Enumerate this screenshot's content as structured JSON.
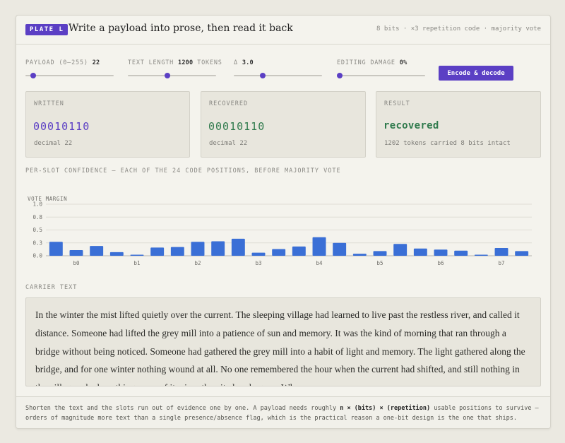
{
  "header": {
    "plate": "PLATE L",
    "title": "Write a payload into prose, then read it back",
    "meta": "8 bits · ×3 repetition code · majority vote"
  },
  "controls": [
    {
      "label": "PAYLOAD (0–255)",
      "value": "22",
      "fraction": 0.086
    },
    {
      "label": "TEXT LENGTH",
      "value": "1200",
      "unit": "TOKENS",
      "fraction": 0.45
    },
    {
      "label": "Δ",
      "value": "3.0",
      "fraction": 0.33
    },
    {
      "label": "EDITING DAMAGE",
      "value": "0%",
      "fraction": 0.0
    }
  ],
  "encode_button": "Encode & decode",
  "panels": {
    "written": {
      "label": "WRITTEN",
      "bits": "00010110",
      "sub": "decimal 22"
    },
    "recovered": {
      "label": "RECOVERED",
      "bits": "00010110",
      "sub": "decimal 22"
    },
    "result": {
      "label": "RESULT",
      "status": "recovered",
      "sub": "1202 tokens carried 8 bits intact"
    }
  },
  "colors": {
    "accent": "#5b3fc4",
    "written_bits": "#5b3fc4",
    "recovered_bits": "#2f7a4c",
    "bar": "#3a6fd6"
  },
  "chart_section_label": "PER-SLOT CONFIDENCE — EACH OF THE 24 CODE POSITIONS, BEFORE MAJORITY VOTE",
  "chart_data": {
    "type": "bar",
    "ylabel": "VOTE MARGIN",
    "ylim": [
      0,
      1.0
    ],
    "yticks": [
      "0.0",
      "0.3",
      "0.5",
      "0.8",
      "1.0"
    ],
    "ytick_values": [
      0,
      0.25,
      0.5,
      0.75,
      1.0
    ],
    "xlabels": [
      "b0",
      "b1",
      "b2",
      "b3",
      "b4",
      "b5",
      "b6",
      "b7"
    ],
    "values": [
      0.27,
      0.11,
      0.19,
      0.07,
      0.02,
      0.16,
      0.17,
      0.27,
      0.28,
      0.33,
      0.06,
      0.13,
      0.18,
      0.36,
      0.25,
      0.04,
      0.09,
      0.23,
      0.14,
      0.12,
      0.1,
      0.02,
      0.15,
      0.09
    ],
    "grid": true
  },
  "carrier": {
    "label": "CARRIER TEXT",
    "text": "In the winter the mist lifted quietly over the current. The sleeping village had learned to live past the restless river, and called it distance. Someone had lifted the grey mill into a patience of sun and memory. It was the kind of morning that ran through a bridge without being noticed. Someone had gathered the grey mill into a habit of light and memory. The light gathered along the bridge, and for one winter nothing wound at all. No one remembered the hour when the current had shifted, and still nothing in the village asked anything more of its river than it already gave. When"
  },
  "footer": {
    "part1": "Shorten the text and the slots run out of evidence one by one. A payload needs roughly ",
    "formula": "n × (bits) × (repetition)",
    "part2": " usable positions to survive — orders of magnitude more text than a single presence/absence flag, which is the practical reason a one-bit design is the one that ships."
  }
}
